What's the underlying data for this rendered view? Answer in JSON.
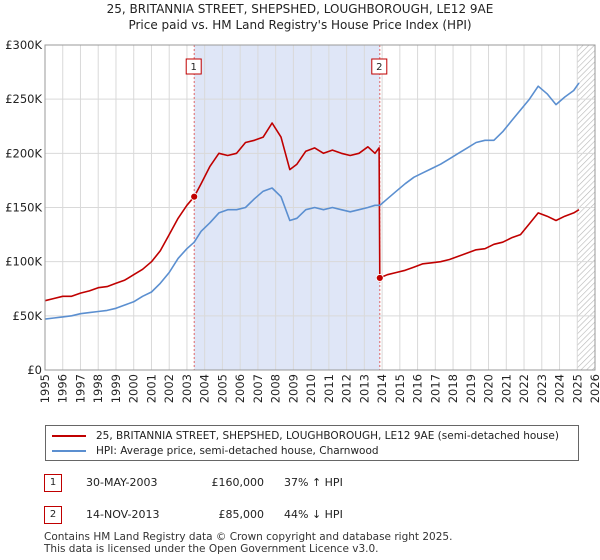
{
  "title": "25, BRITANNIA STREET, SHEPSHED, LOUGHBOROUGH, LE12 9AE",
  "subtitle": "Price paid vs. HM Land Registry's House Price Index (HPI)",
  "chart_data": {
    "type": "line",
    "x_range": [
      1995,
      2026
    ],
    "ylim": [
      0,
      300000
    ],
    "y_ticks": [
      0,
      50000,
      100000,
      150000,
      200000,
      250000,
      300000
    ],
    "y_tick_labels": [
      "£0",
      "£50K",
      "£100K",
      "£150K",
      "£200K",
      "£250K",
      "£300K"
    ],
    "x_ticks": [
      1995,
      1996,
      1997,
      1998,
      1999,
      2000,
      2001,
      2002,
      2003,
      2004,
      2005,
      2006,
      2007,
      2008,
      2009,
      2010,
      2011,
      2012,
      2013,
      2014,
      2015,
      2016,
      2017,
      2018,
      2019,
      2020,
      2021,
      2022,
      2023,
      2024,
      2025,
      2026
    ],
    "x_tick_labels": [
      "1995",
      "1996",
      "1997",
      "1998",
      "1999",
      "2000",
      "2001",
      "2002",
      "2003",
      "2004",
      "2005",
      "2006",
      "2007",
      "2008",
      "2009",
      "2010",
      "2011",
      "2012",
      "2013",
      "2014",
      "2015",
      "2016",
      "2017",
      "2018",
      "2019",
      "2020",
      "2021",
      "2022",
      "2023",
      "2024",
      "2025",
      "2026"
    ],
    "grid": true,
    "shaded_period": [
      2003.41,
      2013.87
    ],
    "future_hatch_from": 2025.0,
    "series": [
      {
        "name": "25, BRITANNIA STREET, SHEPSHED, LOUGHBOROUGH, LE12 9AE (semi-detached house)",
        "color": "#c00000",
        "x": [
          1995.0,
          1995.5,
          1996.0,
          1996.5,
          1997.0,
          1997.5,
          1998.0,
          1998.5,
          1999.0,
          1999.5,
          2000.0,
          2000.5,
          2001.0,
          2001.5,
          2002.0,
          2002.5,
          2003.0,
          2003.41,
          2003.8,
          2004.3,
          2004.8,
          2005.3,
          2005.8,
          2006.3,
          2006.8,
          2007.3,
          2007.8,
          2008.3,
          2008.8,
          2009.2,
          2009.7,
          2010.2,
          2010.7,
          2011.2,
          2011.7,
          2012.2,
          2012.7,
          2013.2,
          2013.6,
          2013.83,
          2013.87,
          2014.3,
          2014.8,
          2015.3,
          2015.8,
          2016.3,
          2016.8,
          2017.3,
          2017.8,
          2018.3,
          2018.8,
          2019.3,
          2019.8,
          2020.3,
          2020.8,
          2021.3,
          2021.8,
          2022.3,
          2022.8,
          2023.3,
          2023.8,
          2024.3,
          2024.8,
          2025.1
        ],
        "values": [
          64000,
          66000,
          68000,
          68000,
          71000,
          73000,
          76000,
          77000,
          80000,
          83000,
          88000,
          93000,
          100000,
          110000,
          125000,
          140000,
          152000,
          160000,
          172000,
          188000,
          200000,
          198000,
          200000,
          210000,
          212000,
          215000,
          228000,
          215000,
          185000,
          190000,
          202000,
          205000,
          200000,
          203000,
          200000,
          198000,
          200000,
          206000,
          200000,
          205000,
          85000,
          88000,
          90000,
          92000,
          95000,
          98000,
          99000,
          100000,
          102000,
          105000,
          108000,
          111000,
          112000,
          116000,
          118000,
          122000,
          125000,
          135000,
          145000,
          142000,
          138000,
          142000,
          145000,
          148000
        ]
      },
      {
        "name": "HPI: Average price, semi-detached house, Charnwood",
        "color": "#5b8fd0",
        "x": [
          1995.0,
          1995.5,
          1996.0,
          1996.5,
          1997.0,
          1997.5,
          1998.0,
          1998.5,
          1999.0,
          1999.5,
          2000.0,
          2000.5,
          2001.0,
          2001.5,
          2002.0,
          2002.5,
          2003.0,
          2003.41,
          2003.8,
          2004.3,
          2004.8,
          2005.3,
          2005.8,
          2006.3,
          2006.8,
          2007.3,
          2007.8,
          2008.3,
          2008.8,
          2009.2,
          2009.7,
          2010.2,
          2010.7,
          2011.2,
          2011.7,
          2012.2,
          2012.7,
          2013.2,
          2013.6,
          2013.87,
          2014.3,
          2014.8,
          2015.3,
          2015.8,
          2016.3,
          2016.8,
          2017.3,
          2017.8,
          2018.3,
          2018.8,
          2019.3,
          2019.8,
          2020.3,
          2020.8,
          2021.3,
          2021.8,
          2022.3,
          2022.8,
          2023.3,
          2023.8,
          2024.3,
          2024.8,
          2025.1
        ],
        "values": [
          47000,
          48000,
          49000,
          50000,
          52000,
          53000,
          54000,
          55000,
          57000,
          60000,
          63000,
          68000,
          72000,
          80000,
          90000,
          103000,
          112000,
          118000,
          128000,
          136000,
          145000,
          148000,
          148000,
          150000,
          158000,
          165000,
          168000,
          160000,
          138000,
          140000,
          148000,
          150000,
          148000,
          150000,
          148000,
          146000,
          148000,
          150000,
          152000,
          152000,
          158000,
          165000,
          172000,
          178000,
          182000,
          186000,
          190000,
          195000,
          200000,
          205000,
          210000,
          212000,
          212000,
          220000,
          230000,
          240000,
          250000,
          262000,
          255000,
          245000,
          252000,
          258000,
          265000
        ]
      }
    ],
    "sales": [
      {
        "label": "1",
        "x": 2003.41,
        "value": 160000
      },
      {
        "label": "2",
        "x": 2013.87,
        "value": 85000
      }
    ]
  },
  "legend": {
    "property_label": "25, BRITANNIA STREET, SHEPSHED, LOUGHBOROUGH, LE12 9AE (semi-detached house)",
    "hpi_label": "HPI: Average price, semi-detached house, Charnwood"
  },
  "transactions": [
    {
      "marker": "1",
      "date": "30-MAY-2003",
      "price": "£160,000",
      "hpi": "37% ↑ HPI"
    },
    {
      "marker": "2",
      "date": "14-NOV-2013",
      "price": "£85,000",
      "hpi": "44% ↓ HPI"
    }
  ],
  "footer": {
    "line1": "Contains HM Land Registry data © Crown copyright and database right 2025.",
    "line2": "This data is licensed under the Open Government Licence v3.0."
  }
}
